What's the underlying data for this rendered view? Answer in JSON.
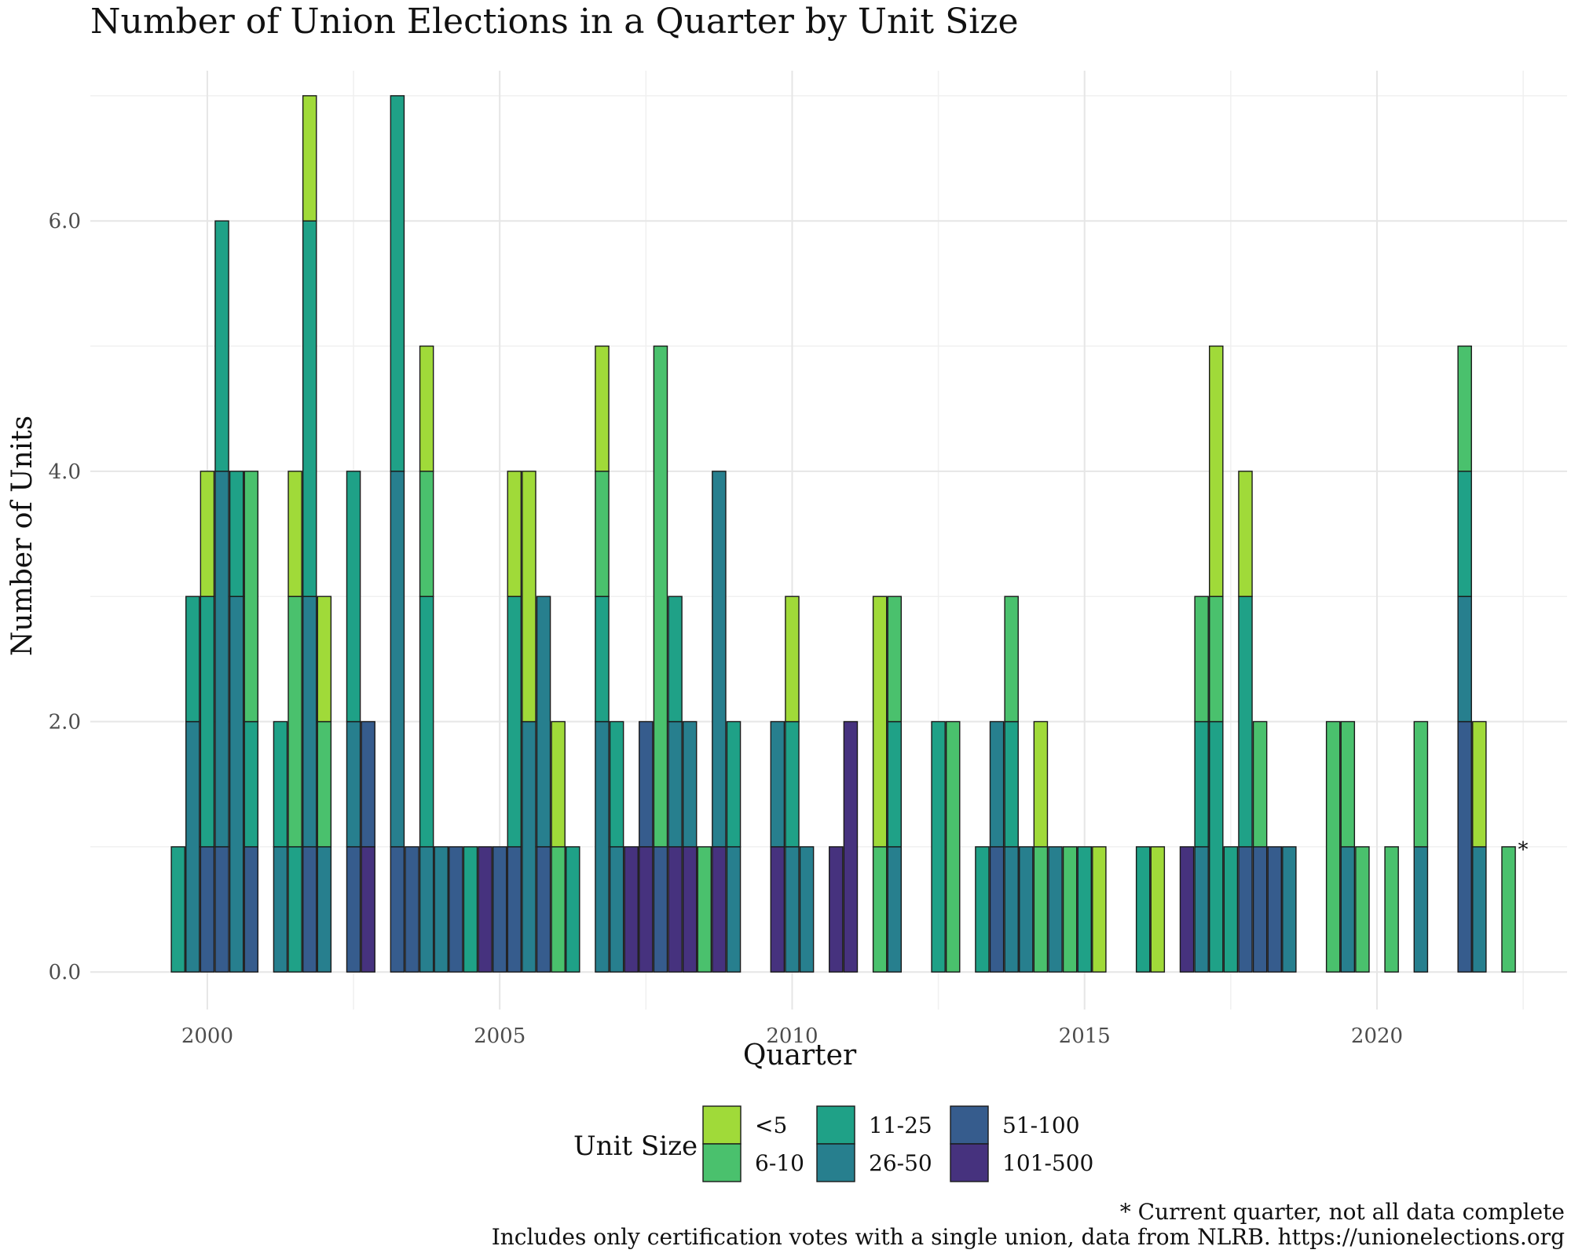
{
  "chart_data": {
    "type": "bar",
    "stacked": true,
    "title": "Number of Union Elections in a Quarter by Unit Size",
    "xlabel": "Quarter",
    "ylabel": "Number of Units",
    "xlim": [
      1998.0,
      2023.25
    ],
    "ylim": [
      -0.3,
      7.2
    ],
    "x_ticks": [
      "2000",
      "2005",
      "2010",
      "2015",
      "2020"
    ],
    "y_ticks": [
      "0.0",
      "2.0",
      "4.0",
      "6.0"
    ],
    "grid": true,
    "legend": {
      "title": "Unit Size",
      "position": "bottom",
      "entries": [
        {
          "label": "<5",
          "color": "#a0da39"
        },
        {
          "label": "6-10",
          "color": "#4ac16d"
        },
        {
          "label": "11-25",
          "color": "#1fa187"
        },
        {
          "label": "26-50",
          "color": "#277f8e"
        },
        {
          "label": "51-100",
          "color": "#365c8d"
        },
        {
          "label": "101-500",
          "color": "#46327e"
        }
      ]
    },
    "series_order": [
      "<5",
      "6-10",
      "11-25",
      "26-50",
      "51-100",
      "101-500"
    ],
    "bars": [
      {
        "x": 1999.5,
        "counts": {
          "11-25": 1
        }
      },
      {
        "x": 1999.75,
        "counts": {
          "11-25": 1,
          "26-50": 2
        }
      },
      {
        "x": 2000.0,
        "counts": {
          "<5": 1,
          "11-25": 2,
          "51-100": 1
        }
      },
      {
        "x": 2000.25,
        "counts": {
          "11-25": 2,
          "26-50": 3,
          "51-100": 1
        }
      },
      {
        "x": 2000.5,
        "counts": {
          "11-25": 1,
          "26-50": 3
        }
      },
      {
        "x": 2000.75,
        "counts": {
          "6-10": 2,
          "11-25": 1,
          "51-100": 1
        }
      },
      {
        "x": 2001.25,
        "counts": {
          "11-25": 1,
          "26-50": 1
        }
      },
      {
        "x": 2001.5,
        "counts": {
          "<5": 1,
          "6-10": 2,
          "11-25": 1
        }
      },
      {
        "x": 2001.75,
        "counts": {
          "<5": 1,
          "11-25": 3,
          "26-50": 2,
          "51-100": 1
        }
      },
      {
        "x": 2002.0,
        "counts": {
          "<5": 1,
          "6-10": 1,
          "26-50": 1
        }
      },
      {
        "x": 2002.5,
        "counts": {
          "11-25": 2,
          "26-50": 1,
          "51-100": 1
        }
      },
      {
        "x": 2002.75,
        "counts": {
          "51-100": 1,
          "101-500": 1
        }
      },
      {
        "x": 2003.25,
        "counts": {
          "11-25": 3,
          "26-50": 3,
          "51-100": 1
        }
      },
      {
        "x": 2003.5,
        "counts": {
          "51-100": 1
        }
      },
      {
        "x": 2003.75,
        "counts": {
          "<5": 1,
          "6-10": 1,
          "11-25": 2,
          "26-50": 1
        }
      },
      {
        "x": 2004.0,
        "counts": {
          "26-50": 1
        }
      },
      {
        "x": 2004.25,
        "counts": {
          "51-100": 1
        }
      },
      {
        "x": 2004.5,
        "counts": {
          "11-25": 1
        }
      },
      {
        "x": 2004.75,
        "counts": {
          "101-500": 1
        }
      },
      {
        "x": 2005.0,
        "counts": {
          "51-100": 1
        }
      },
      {
        "x": 2005.25,
        "counts": {
          "<5": 1,
          "11-25": 2,
          "51-100": 1
        }
      },
      {
        "x": 2005.5,
        "counts": {
          "<5": 2,
          "26-50": 2
        }
      },
      {
        "x": 2005.75,
        "counts": {
          "26-50": 2,
          "51-100": 1
        }
      },
      {
        "x": 2006.0,
        "counts": {
          "<5": 1,
          "6-10": 1
        }
      },
      {
        "x": 2006.25,
        "counts": {
          "11-25": 1
        }
      },
      {
        "x": 2006.75,
        "counts": {
          "<5": 1,
          "6-10": 1,
          "11-25": 1,
          "26-50": 2
        }
      },
      {
        "x": 2007.0,
        "counts": {
          "11-25": 1,
          "26-50": 1
        }
      },
      {
        "x": 2007.25,
        "counts": {
          "101-500": 1
        }
      },
      {
        "x": 2007.5,
        "counts": {
          "51-100": 1,
          "101-500": 1
        }
      },
      {
        "x": 2007.75,
        "counts": {
          "6-10": 4,
          "51-100": 1
        }
      },
      {
        "x": 2008.0,
        "counts": {
          "11-25": 1,
          "26-50": 1,
          "101-500": 1
        }
      },
      {
        "x": 2008.25,
        "counts": {
          "26-50": 1,
          "101-500": 1
        }
      },
      {
        "x": 2008.5,
        "counts": {
          "6-10": 1
        }
      },
      {
        "x": 2008.75,
        "counts": {
          "26-50": 3,
          "101-500": 1
        }
      },
      {
        "x": 2009.0,
        "counts": {
          "11-25": 1,
          "26-50": 1
        }
      },
      {
        "x": 2009.75,
        "counts": {
          "26-50": 1,
          "101-500": 1
        }
      },
      {
        "x": 2010.0,
        "counts": {
          "<5": 1,
          "11-25": 1,
          "26-50": 1
        }
      },
      {
        "x": 2010.25,
        "counts": {
          "26-50": 1
        }
      },
      {
        "x": 2010.75,
        "counts": {
          "101-500": 1
        }
      },
      {
        "x": 2011.0,
        "counts": {
          "101-500": 2
        }
      },
      {
        "x": 2011.5,
        "counts": {
          "<5": 2,
          "6-10": 1
        }
      },
      {
        "x": 2011.75,
        "counts": {
          "6-10": 1,
          "11-25": 1,
          "26-50": 1
        }
      },
      {
        "x": 2012.5,
        "counts": {
          "11-25": 2
        }
      },
      {
        "x": 2012.75,
        "counts": {
          "6-10": 2
        }
      },
      {
        "x": 2013.25,
        "counts": {
          "11-25": 1
        }
      },
      {
        "x": 2013.5,
        "counts": {
          "26-50": 1,
          "51-100": 1
        }
      },
      {
        "x": 2013.75,
        "counts": {
          "6-10": 1,
          "11-25": 1,
          "26-50": 1
        }
      },
      {
        "x": 2014.0,
        "counts": {
          "26-50": 1
        }
      },
      {
        "x": 2014.25,
        "counts": {
          "<5": 1,
          "6-10": 1
        }
      },
      {
        "x": 2014.5,
        "counts": {
          "26-50": 1
        }
      },
      {
        "x": 2014.75,
        "counts": {
          "6-10": 1
        }
      },
      {
        "x": 2015.0,
        "counts": {
          "11-25": 1
        }
      },
      {
        "x": 2015.25,
        "counts": {
          "<5": 1
        }
      },
      {
        "x": 2016.0,
        "counts": {
          "11-25": 1
        }
      },
      {
        "x": 2016.25,
        "counts": {
          "<5": 1
        }
      },
      {
        "x": 2016.75,
        "counts": {
          "101-500": 1
        }
      },
      {
        "x": 2017.0,
        "counts": {
          "6-10": 1,
          "11-25": 1,
          "26-50": 1
        }
      },
      {
        "x": 2017.25,
        "counts": {
          "<5": 2,
          "6-10": 1,
          "11-25": 2
        }
      },
      {
        "x": 2017.5,
        "counts": {
          "11-25": 1
        }
      },
      {
        "x": 2017.75,
        "counts": {
          "<5": 1,
          "11-25": 2,
          "51-100": 1
        }
      },
      {
        "x": 2018.0,
        "counts": {
          "6-10": 1,
          "51-100": 1
        }
      },
      {
        "x": 2018.25,
        "counts": {
          "51-100": 1
        }
      },
      {
        "x": 2018.5,
        "counts": {
          "26-50": 1
        }
      },
      {
        "x": 2019.25,
        "counts": {
          "6-10": 2
        }
      },
      {
        "x": 2019.5,
        "counts": {
          "6-10": 1,
          "26-50": 1
        }
      },
      {
        "x": 2019.75,
        "counts": {
          "6-10": 1
        }
      },
      {
        "x": 2020.25,
        "counts": {
          "6-10": 1
        }
      },
      {
        "x": 2020.75,
        "counts": {
          "6-10": 1,
          "26-50": 1
        }
      },
      {
        "x": 2021.5,
        "counts": {
          "6-10": 1,
          "11-25": 1,
          "26-50": 1,
          "51-100": 2
        }
      },
      {
        "x": 2021.75,
        "counts": {
          "<5": 1,
          "26-50": 1
        }
      },
      {
        "x": 2022.25,
        "counts": {
          "6-10": 1
        }
      }
    ],
    "annotations": [
      {
        "x": 2022.25,
        "y": 1,
        "text": "*"
      }
    ],
    "captions": [
      "* Current quarter, not all data complete",
      "Includes only certification votes with a single union, data from NLRB. https://unionelections.org"
    ]
  }
}
